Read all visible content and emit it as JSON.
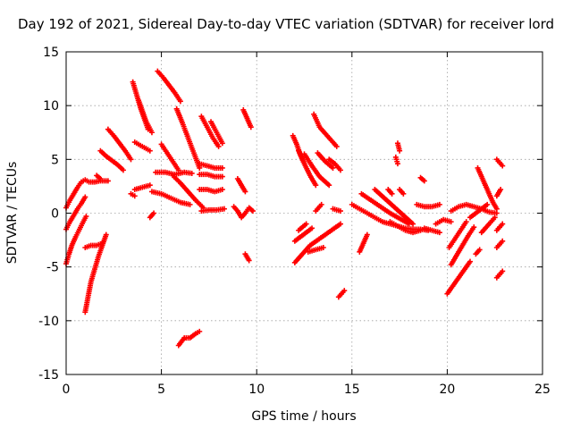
{
  "chart_data": {
    "type": "scatter",
    "title": "Day 192 of 2021, Sidereal Day-to-day VTEC variation (SDTVAR) for receiver lord",
    "xlabel": "GPS time / hours",
    "ylabel": "SDTVAR / TECUs",
    "xlim": [
      0,
      25
    ],
    "ylim": [
      -15,
      15
    ],
    "xticks": [
      "0",
      "5",
      "10",
      "15",
      "20",
      "25"
    ],
    "yticks": [
      "15",
      "10",
      "5",
      "0",
      "-5",
      "-10",
      "-15"
    ],
    "grid": true,
    "marker": "plus",
    "marker_color": "#ff0000",
    "series": [
      {
        "x": [
          0.0,
          0.2,
          0.4,
          0.6,
          0.8,
          1.0,
          1.2,
          1.5,
          1.8,
          2.2
        ],
        "y": [
          0.5,
          1.2,
          1.8,
          2.4,
          2.9,
          3.1,
          2.9,
          2.9,
          3.0,
          3.0
        ]
      },
      {
        "x": [
          0.0,
          0.2,
          0.4,
          0.6,
          0.8,
          1.0
        ],
        "y": [
          -1.5,
          -0.8,
          -0.2,
          0.4,
          0.9,
          1.5
        ]
      },
      {
        "x": [
          0.0,
          0.15,
          0.3,
          0.5,
          0.7,
          0.9,
          1.05
        ],
        "y": [
          -4.7,
          -3.8,
          -3.0,
          -2.2,
          -1.5,
          -0.8,
          -0.3
        ]
      },
      {
        "x": [
          1.0,
          1.15,
          1.3,
          1.5,
          1.7,
          1.9,
          2.1
        ],
        "y": [
          -9.2,
          -7.8,
          -6.4,
          -5.2,
          -4.0,
          -3.0,
          -2.0
        ]
      },
      {
        "x": [
          1.0,
          1.3,
          1.6,
          1.9
        ],
        "y": [
          -3.2,
          -3.0,
          -3.0,
          -2.8
        ]
      },
      {
        "x": [
          2.2,
          2.5,
          2.8,
          3.1,
          3.4
        ],
        "y": [
          7.8,
          7.2,
          6.5,
          5.8,
          5.0
        ]
      },
      {
        "x": [
          1.8,
          2.1,
          2.4,
          2.7,
          3.0
        ],
        "y": [
          5.8,
          5.3,
          4.9,
          4.5,
          4.0
        ]
      },
      {
        "x": [
          1.6,
          1.8
        ],
        "y": [
          3.5,
          3.2
        ]
      },
      {
        "x": [
          3.5,
          3.7,
          3.9,
          4.1,
          4.3
        ],
        "y": [
          12.2,
          11.0,
          9.8,
          8.8,
          7.8
        ]
      },
      {
        "x": [
          3.8,
          4.0,
          4.2,
          4.5
        ],
        "y": [
          10.5,
          9.5,
          8.5,
          7.5
        ]
      },
      {
        "x": [
          3.6,
          4.0,
          4.4
        ],
        "y": [
          6.6,
          6.2,
          5.8
        ]
      },
      {
        "x": [
          3.6,
          4.0,
          4.4
        ],
        "y": [
          2.2,
          2.4,
          2.6
        ]
      },
      {
        "x": [
          3.4,
          3.6
        ],
        "y": [
          1.8,
          1.6
        ]
      },
      {
        "x": [
          4.8,
          5.1,
          5.4,
          5.7,
          6.0
        ],
        "y": [
          13.2,
          12.6,
          11.9,
          11.2,
          10.4
        ]
      },
      {
        "x": [
          5.0,
          5.3,
          5.6,
          5.9
        ],
        "y": [
          6.4,
          5.6,
          4.8,
          4.0
        ]
      },
      {
        "x": [
          5.8,
          6.1,
          6.4,
          6.7,
          7.0
        ],
        "y": [
          9.7,
          8.4,
          7.0,
          5.6,
          4.2
        ]
      },
      {
        "x": [
          4.7,
          5.2,
          5.7,
          6.2,
          6.6
        ],
        "y": [
          3.8,
          3.8,
          3.6,
          3.8,
          3.7
        ]
      },
      {
        "x": [
          4.5,
          5.0,
          5.5,
          6.0,
          6.5
        ],
        "y": [
          2.0,
          1.8,
          1.4,
          1.0,
          0.8
        ]
      },
      {
        "x": [
          5.6,
          6.0,
          6.4,
          6.8,
          7.2
        ],
        "y": [
          3.5,
          2.8,
          2.0,
          1.2,
          0.5
        ]
      },
      {
        "x": [
          4.6,
          4.4
        ],
        "y": [
          0.0,
          -0.4
        ]
      },
      {
        "x": [
          7.1,
          7.4,
          7.7,
          8.0
        ],
        "y": [
          9.0,
          8.0,
          7.0,
          6.2
        ]
      },
      {
        "x": [
          7.6,
          7.9,
          8.2
        ],
        "y": [
          8.5,
          7.5,
          6.5
        ]
      },
      {
        "x": [
          7.0,
          7.4,
          7.8,
          8.2
        ],
        "y": [
          4.6,
          4.4,
          4.2,
          4.2
        ]
      },
      {
        "x": [
          7.0,
          7.4,
          7.8,
          8.2
        ],
        "y": [
          3.6,
          3.6,
          3.4,
          3.4
        ]
      },
      {
        "x": [
          7.0,
          7.4,
          7.8,
          8.2
        ],
        "y": [
          2.2,
          2.2,
          2.0,
          2.2
        ]
      },
      {
        "x": [
          7.1,
          7.5,
          7.9,
          8.3
        ],
        "y": [
          0.2,
          0.3,
          0.3,
          0.4
        ]
      },
      {
        "x": [
          8.8,
          9.0,
          9.2,
          9.4,
          9.6,
          9.8
        ],
        "y": [
          0.6,
          0.2,
          -0.4,
          0.0,
          0.5,
          0.2
        ]
      },
      {
        "x": [
          9.0,
          9.2,
          9.4
        ],
        "y": [
          3.2,
          2.6,
          2.0
        ]
      },
      {
        "x": [
          9.3,
          9.5,
          9.7
        ],
        "y": [
          9.6,
          8.8,
          8.0
        ]
      },
      {
        "x": [
          9.4,
          9.6
        ],
        "y": [
          -3.8,
          -4.4
        ]
      },
      {
        "x": [
          5.9,
          6.2,
          6.5,
          6.8,
          7.0
        ],
        "y": [
          -12.3,
          -11.6,
          -11.6,
          -11.2,
          -11.0
        ]
      },
      {
        "x": [
          11.9,
          12.1,
          12.3,
          12.5
        ],
        "y": [
          7.2,
          6.4,
          5.4,
          4.6
        ]
      },
      {
        "x": [
          12.2,
          12.5,
          12.8,
          13.1
        ],
        "y": [
          5.8,
          4.6,
          3.5,
          2.6
        ]
      },
      {
        "x": [
          12.5,
          12.9,
          13.3,
          13.8
        ],
        "y": [
          5.5,
          4.4,
          3.4,
          2.6
        ]
      },
      {
        "x": [
          13.0,
          13.3,
          13.7,
          14.2
        ],
        "y": [
          9.2,
          8.0,
          7.2,
          6.2
        ]
      },
      {
        "x": [
          13.2,
          13.6,
          14.0
        ],
        "y": [
          5.6,
          4.8,
          4.2
        ]
      },
      {
        "x": [
          13.8,
          14.1,
          14.4
        ],
        "y": [
          5.0,
          4.6,
          4.0
        ]
      },
      {
        "x": [
          12.0,
          12.4,
          12.8,
          13.2,
          13.6,
          14.0,
          14.4
        ],
        "y": [
          -4.6,
          -3.8,
          -3.0,
          -2.5,
          -2.0,
          -1.5,
          -1.0
        ]
      },
      {
        "x": [
          12.0,
          12.3,
          12.6,
          12.9
        ],
        "y": [
          -2.6,
          -2.2,
          -1.8,
          -1.4
        ]
      },
      {
        "x": [
          12.7,
          13.1,
          13.5
        ],
        "y": [
          -3.6,
          -3.4,
          -3.2
        ]
      },
      {
        "x": [
          12.2,
          12.6
        ],
        "y": [
          -1.6,
          -1.0
        ]
      },
      {
        "x": [
          13.4,
          13.1
        ],
        "y": [
          0.8,
          0.2
        ]
      },
      {
        "x": [
          14.3,
          14.6
        ],
        "y": [
          -7.8,
          -7.2
        ]
      },
      {
        "x": [
          15.0,
          15.4,
          15.8,
          16.2,
          16.6,
          17.0,
          17.4,
          17.8,
          18.2,
          18.6,
          19.0
        ],
        "y": [
          0.8,
          0.4,
          0.0,
          -0.4,
          -0.8,
          -1.0,
          -1.2,
          -1.4,
          -1.5,
          -1.5,
          -1.6
        ]
      },
      {
        "x": [
          15.5,
          16.0,
          16.5,
          17.0,
          17.5,
          18.0
        ],
        "y": [
          1.8,
          1.2,
          0.6,
          0.0,
          -0.5,
          -1.0
        ]
      },
      {
        "x": [
          16.2,
          16.7,
          17.2,
          17.7,
          18.2
        ],
        "y": [
          2.2,
          1.4,
          0.6,
          -0.2,
          -1.0
        ]
      },
      {
        "x": [
          15.4,
          15.6,
          15.8
        ],
        "y": [
          -3.6,
          -2.8,
          -2.0
        ]
      },
      {
        "x": [
          14.0,
          14.4
        ],
        "y": [
          0.4,
          0.2
        ]
      },
      {
        "x": [
          17.0,
          17.4,
          17.8,
          18.2,
          18.6
        ],
        "y": [
          -0.8,
          -1.2,
          -1.6,
          -1.8,
          -1.6
        ]
      },
      {
        "x": [
          18.8,
          19.2,
          19.6
        ],
        "y": [
          -1.4,
          -1.6,
          -1.8
        ]
      },
      {
        "x": [
          17.4,
          17.5
        ],
        "y": [
          6.5,
          5.8
        ]
      },
      {
        "x": [
          17.3,
          17.4
        ],
        "y": [
          5.2,
          4.6
        ]
      },
      {
        "x": [
          16.9,
          17.1
        ],
        "y": [
          2.2,
          1.8
        ]
      },
      {
        "x": [
          17.5,
          17.7
        ],
        "y": [
          2.2,
          1.8
        ]
      },
      {
        "x": [
          18.6,
          18.8
        ],
        "y": [
          3.3,
          3.0
        ]
      },
      {
        "x": [
          18.4,
          18.8,
          19.2,
          19.6
        ],
        "y": [
          0.8,
          0.6,
          0.6,
          0.8
        ]
      },
      {
        "x": [
          19.4,
          19.8,
          20.2
        ],
        "y": [
          -1.0,
          -0.6,
          -0.8
        ]
      },
      {
        "x": [
          20.0,
          20.4,
          20.8,
          21.2
        ],
        "y": [
          -7.5,
          -6.5,
          -5.5,
          -4.5
        ]
      },
      {
        "x": [
          20.2,
          20.5,
          20.8,
          21.1,
          21.4
        ],
        "y": [
          -4.8,
          -3.9,
          -3.0,
          -2.1,
          -1.3
        ]
      },
      {
        "x": [
          20.1,
          20.4,
          20.7,
          21.0
        ],
        "y": [
          -3.2,
          -2.4,
          -1.6,
          -0.8
        ]
      },
      {
        "x": [
          20.2,
          20.6,
          21.0,
          21.4,
          21.8,
          22.2,
          22.6
        ],
        "y": [
          0.2,
          0.6,
          0.8,
          0.6,
          0.4,
          0.1,
          0.0
        ]
      },
      {
        "x": [
          21.6,
          21.8,
          22.0,
          22.2,
          22.4,
          22.6
        ],
        "y": [
          4.2,
          3.4,
          2.6,
          1.8,
          1.0,
          0.4
        ]
      },
      {
        "x": [
          21.2,
          21.5,
          21.8,
          22.1
        ],
        "y": [
          -0.4,
          0.0,
          0.4,
          0.8
        ]
      },
      {
        "x": [
          21.8,
          22.2,
          22.5
        ],
        "y": [
          -1.8,
          -1.0,
          -0.4
        ]
      },
      {
        "x": [
          22.6,
          22.9
        ],
        "y": [
          5.0,
          4.4
        ]
      },
      {
        "x": [
          22.8,
          22.6
        ],
        "y": [
          2.2,
          1.6
        ]
      },
      {
        "x": [
          22.9,
          22.6
        ],
        "y": [
          -1.0,
          -1.6
        ]
      },
      {
        "x": [
          22.9,
          22.6
        ],
        "y": [
          -2.6,
          -3.2
        ]
      },
      {
        "x": [
          22.9,
          22.6
        ],
        "y": [
          -5.4,
          -6.0
        ]
      },
      {
        "x": [
          21.5,
          21.7
        ],
        "y": [
          -3.8,
          -3.4
        ]
      }
    ]
  }
}
